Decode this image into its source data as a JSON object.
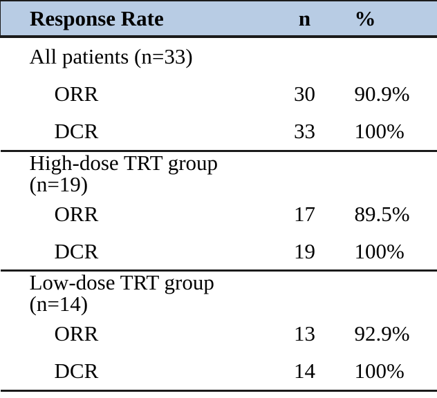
{
  "table": {
    "title": "Response Rate",
    "header": {
      "col1": "Response Rate",
      "col2": "n",
      "col3": "%"
    },
    "sections": [
      {
        "group_label": "All patients (n=33)",
        "rows": [
          {
            "label": "ORR",
            "n": "30",
            "pct": "90.9%"
          },
          {
            "label": "DCR",
            "n": "33",
            "pct": "100%"
          }
        ]
      },
      {
        "group_label": "High-dose TRT group (n=19)",
        "rows": [
          {
            "label": "ORR",
            "n": "17",
            "pct": "89.5%"
          },
          {
            "label": "DCR",
            "n": "19",
            "pct": "100%"
          }
        ]
      },
      {
        "group_label": "Low-dose TRT group (n=14)",
        "rows": [
          {
            "label": "ORR",
            "n": "13",
            "pct": "92.9%"
          },
          {
            "label": "DCR",
            "n": "14",
            "pct": "100%"
          }
        ]
      }
    ],
    "colors": {
      "header_bg": "#B8CCE4",
      "border": "#1b1b1b",
      "text": "#000000"
    }
  }
}
